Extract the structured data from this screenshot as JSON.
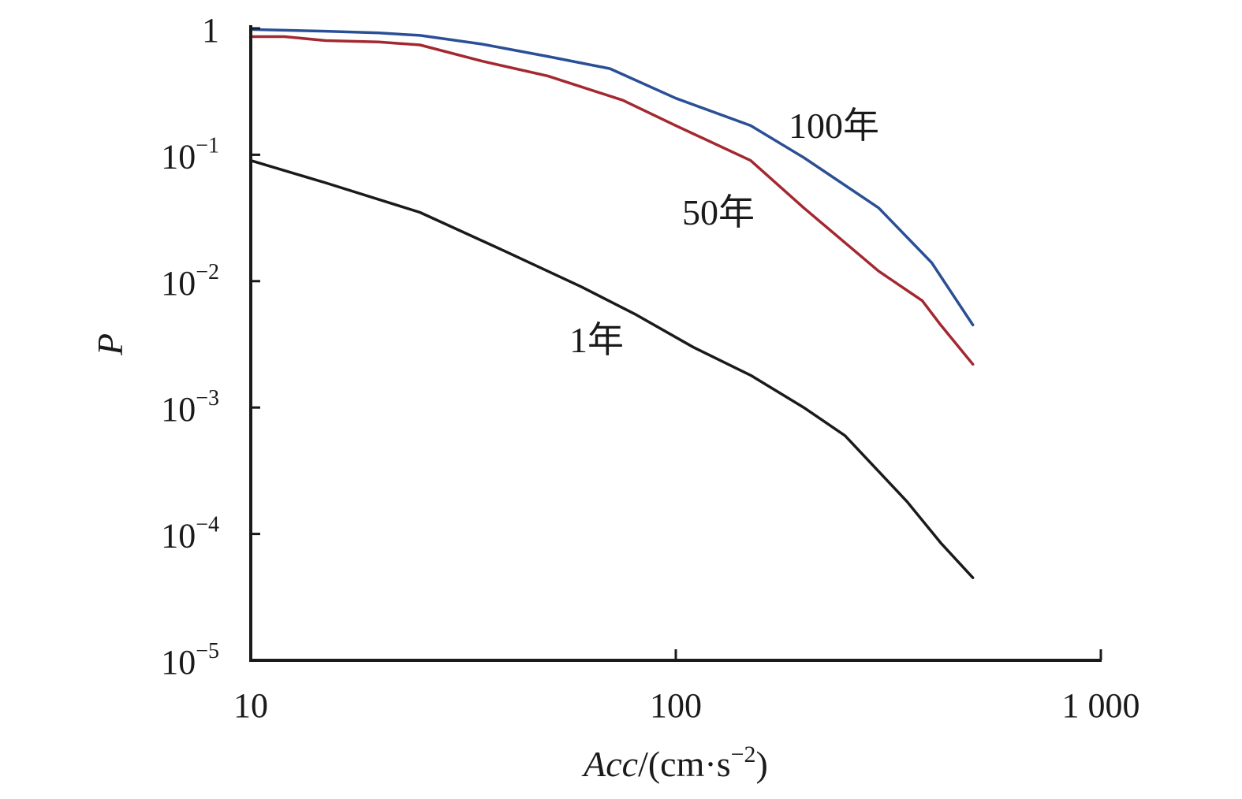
{
  "chart_data": {
    "type": "line",
    "title": "",
    "xlabel": {
      "var": "Acc",
      "unit_prefix": "/(cm·s",
      "unit_exp": "−2",
      "unit_suffix": ")"
    },
    "ylabel": "P",
    "x_scale": "log",
    "y_scale": "log",
    "xlim": [
      10,
      1000
    ],
    "ylim": [
      1e-05,
      1
    ],
    "x_ticks": [
      {
        "value": 10,
        "label": "10"
      },
      {
        "value": 100,
        "label": "100"
      },
      {
        "value": 1000,
        "label": "1 000"
      }
    ],
    "y_ticks": [
      {
        "value": 1,
        "base": "1",
        "exp": ""
      },
      {
        "value": 0.1,
        "base": "10",
        "exp": "−1"
      },
      {
        "value": 0.01,
        "base": "10",
        "exp": "−2"
      },
      {
        "value": 0.001,
        "base": "10",
        "exp": "−3"
      },
      {
        "value": 0.0001,
        "base": "10",
        "exp": "−4"
      },
      {
        "value": 1e-05,
        "base": "10",
        "exp": "−5"
      }
    ],
    "grid": false,
    "legend": "none",
    "series": [
      {
        "name": "100年",
        "color": "#2b4f96",
        "x": [
          10,
          15,
          20,
          25,
          35,
          50,
          70,
          100,
          150,
          200,
          300,
          400,
          500
        ],
        "y": [
          0.98,
          0.95,
          0.92,
          0.88,
          0.75,
          0.6,
          0.48,
          0.28,
          0.17,
          0.095,
          0.038,
          0.014,
          0.0045
        ]
      },
      {
        "name": "50年",
        "color": "#a3282f",
        "x": [
          10,
          12,
          15,
          20,
          25,
          35,
          50,
          75,
          100,
          150,
          200,
          300,
          380,
          420,
          500
        ],
        "y": [
          0.86,
          0.86,
          0.8,
          0.78,
          0.74,
          0.55,
          0.42,
          0.27,
          0.17,
          0.09,
          0.038,
          0.012,
          0.007,
          0.0045,
          0.0022
        ]
      },
      {
        "name": "1年",
        "color": "#1a1a1a",
        "x": [
          10,
          15,
          25,
          40,
          60,
          80,
          110,
          150,
          200,
          250,
          350,
          420,
          500
        ],
        "y": [
          0.09,
          0.06,
          0.035,
          0.017,
          0.009,
          0.0055,
          0.003,
          0.0018,
          0.001,
          0.0006,
          0.00018,
          8.5e-05,
          4.5e-05
        ]
      }
    ]
  }
}
